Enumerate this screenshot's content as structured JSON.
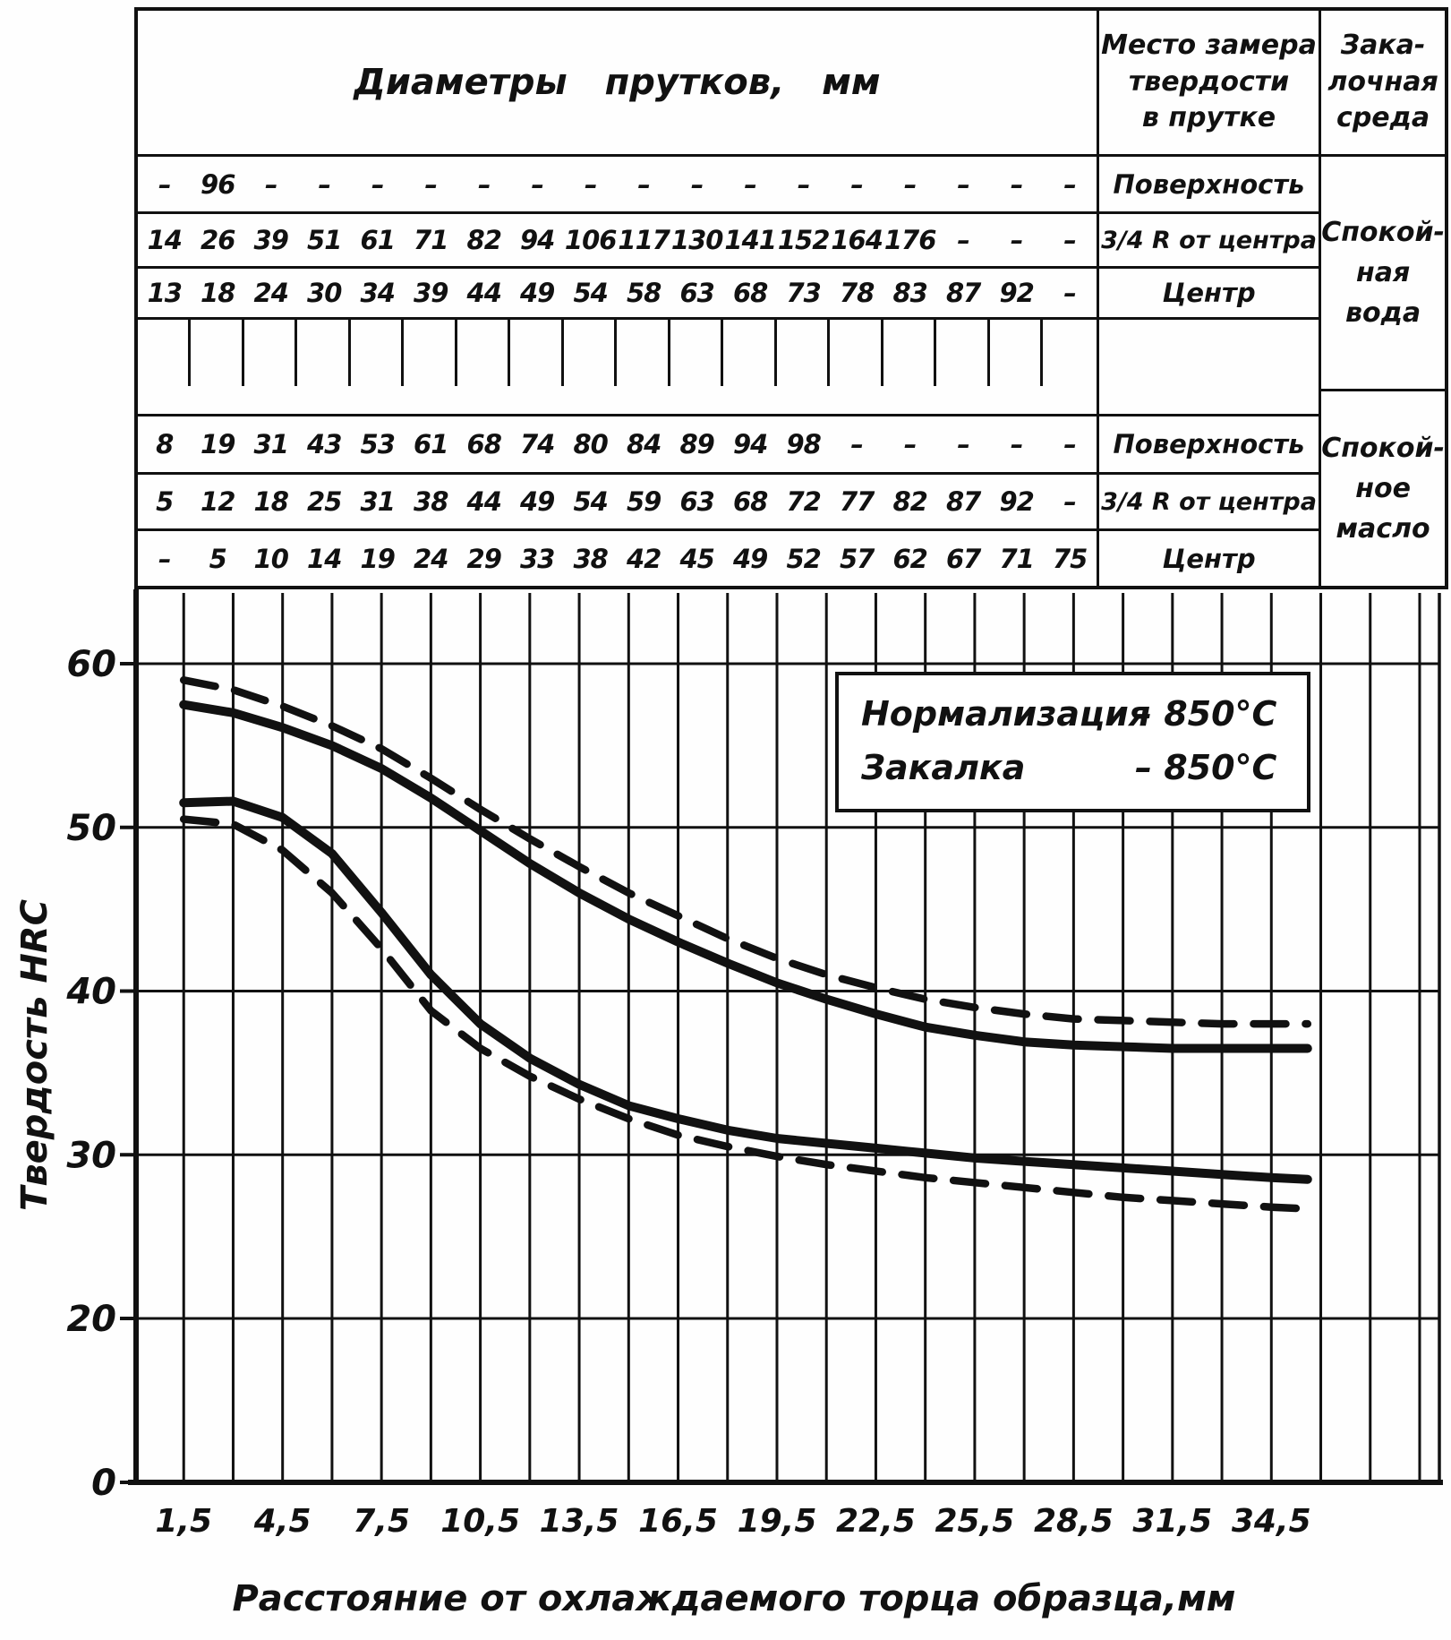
{
  "table": {
    "header_diameters": "Диаметры прутков, мм",
    "header_place": "Место замера\nтвердости\nв прутке",
    "header_medium": "Зака-\nлочная\nсреда",
    "place_labels": [
      "Поверхность",
      "3/4 R от центра",
      "Центр",
      "",
      "Поверхность",
      "3/4 R от центра",
      "Центр"
    ],
    "medium_water": "Спокой-\nная\nвода",
    "medium_oil": "Спокой-\nное\nмасло",
    "rows": [
      [
        "–",
        "96",
        "–",
        "–",
        "–",
        "–",
        "–",
        "–",
        "–",
        "–",
        "–",
        "–",
        "–",
        "–",
        "–",
        "–",
        "–",
        "–"
      ],
      [
        "14",
        "26",
        "39",
        "51",
        "61",
        "71",
        "82",
        "94",
        "106",
        "117",
        "130",
        "141",
        "152",
        "164",
        "176",
        "–",
        "–",
        "–"
      ],
      [
        "13",
        "18",
        "24",
        "30",
        "34",
        "39",
        "44",
        "49",
        "54",
        "58",
        "63",
        "68",
        "73",
        "78",
        "83",
        "87",
        "92",
        "–"
      ],
      [
        "8",
        "19",
        "31",
        "43",
        "53",
        "61",
        "68",
        "74",
        "80",
        "84",
        "89",
        "94",
        "98",
        "–",
        "–",
        "–",
        "–",
        "–"
      ],
      [
        "5",
        "12",
        "18",
        "25",
        "31",
        "38",
        "44",
        "49",
        "54",
        "59",
        "63",
        "68",
        "72",
        "77",
        "82",
        "87",
        "92",
        "–"
      ],
      [
        "–",
        "5",
        "10",
        "14",
        "19",
        "24",
        "29",
        "33",
        "38",
        "42",
        "45",
        "49",
        "52",
        "57",
        "62",
        "67",
        "71",
        "75"
      ]
    ]
  },
  "chart_data": {
    "type": "line",
    "xlabel": "Расстояние  от  охлаждаемого торца образца,мм",
    "ylabel": "Твердость HRC",
    "x_tick_labels": [
      "1,5",
      "4,5",
      "7,5",
      "10,5",
      "13,5",
      "16,5",
      "19,5",
      "22,5",
      "25,5",
      "28,5",
      "31,5",
      "34,5"
    ],
    "x_ticks_mm": [
      1.5,
      4.5,
      7.5,
      10.5,
      13.5,
      16.5,
      19.5,
      22.5,
      25.5,
      28.5,
      31.5,
      34.5
    ],
    "y_ticks": [
      0,
      20,
      30,
      40,
      50,
      60
    ],
    "ylim": [
      0,
      62
    ],
    "xlim": [
      0,
      39.7
    ],
    "grid": "on",
    "legend_position": "upper right inside plot",
    "legend": [
      {
        "label": "Нормализация",
        "value": "– 850°С"
      },
      {
        "label": "Закалка",
        "value": "– 850°С"
      }
    ],
    "x": [
      1.5,
      3,
      4.5,
      6,
      7.5,
      9,
      10.5,
      12,
      13.5,
      15,
      16.5,
      18,
      19.5,
      21,
      22.5,
      24,
      25.5,
      27,
      28.5,
      30,
      31.5,
      33,
      34.5,
      35.6
    ],
    "series": [
      {
        "name": "верхняя пунктирная кривая",
        "style": "dashed",
        "values": [
          59.0,
          58.4,
          57.4,
          56.2,
          54.8,
          53.0,
          51.1,
          49.3,
          47.6,
          46.0,
          44.6,
          43.2,
          42.0,
          41.0,
          40.2,
          39.5,
          39.0,
          38.6,
          38.3,
          38.2,
          38.1,
          38.0,
          38.0,
          38.0
        ]
      },
      {
        "name": "верхняя сплошная кривая",
        "style": "solid",
        "values": [
          57.5,
          57.0,
          56.1,
          55.0,
          53.6,
          51.8,
          49.8,
          47.8,
          46.0,
          44.4,
          43.0,
          41.7,
          40.5,
          39.5,
          38.6,
          37.8,
          37.3,
          36.9,
          36.7,
          36.6,
          36.5,
          36.5,
          36.5,
          36.5
        ]
      },
      {
        "name": "нижняя сплошная кривая",
        "style": "solid",
        "values": [
          51.5,
          51.6,
          50.6,
          48.4,
          44.8,
          41.0,
          38.0,
          35.9,
          34.3,
          33.0,
          32.2,
          31.5,
          31.0,
          30.7,
          30.4,
          30.1,
          29.8,
          29.6,
          29.4,
          29.2,
          29.0,
          28.8,
          28.6,
          28.5
        ]
      },
      {
        "name": "нижняя пунктирная кривая",
        "style": "dashed",
        "values": [
          50.5,
          50.2,
          48.6,
          46.0,
          42.6,
          38.8,
          36.5,
          34.8,
          33.4,
          32.2,
          31.2,
          30.5,
          29.9,
          29.4,
          29.0,
          28.6,
          28.3,
          28.0,
          27.7,
          27.4,
          27.2,
          27.0,
          26.8,
          26.7
        ]
      }
    ]
  }
}
